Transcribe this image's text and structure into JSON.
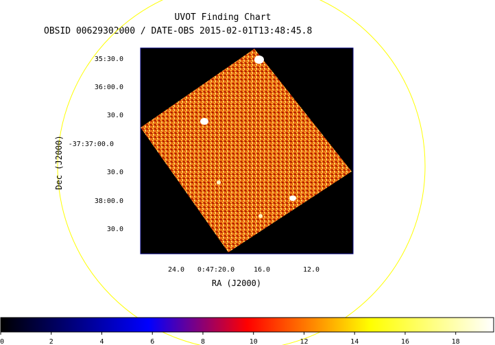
{
  "header": {
    "title": "UVOT Finding Chart",
    "subtitle": "OBSID 00629302000 / DATE-OBS 2015-02-01T13:48:45.8"
  },
  "axes": {
    "x_label": "RA (J2000)",
    "y_label": "Dec (J2000)",
    "x_ticks": [
      "24.0",
      "0:47:20.0",
      "16.0",
      "12.0"
    ],
    "y_ticks": [
      "35:30.0",
      "36:00.0",
      "30.0",
      "-37:37:00.0",
      "30.0",
      "38:00.0",
      "30.0"
    ]
  },
  "colorbar": {
    "ticks": [
      "0",
      "2",
      "4",
      "6",
      "8",
      "10",
      "12",
      "14",
      "16",
      "18"
    ],
    "range": [
      0,
      19.5
    ],
    "colormap": "hot",
    "colors": [
      "#000000",
      "#0000ff",
      "#ff0000",
      "#ffff00",
      "#ffffff"
    ]
  },
  "colors": {
    "circle": "#ffff00",
    "background": "#000000",
    "frame": "#000080"
  }
}
